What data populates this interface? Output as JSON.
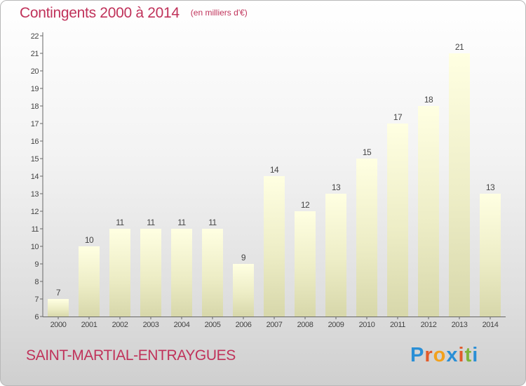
{
  "title": "Contingents 2000 à 2014",
  "subtitle": "(en milliers d'€)",
  "commune": "SAINT-MARTIAL-ENTRAYGUES",
  "logo": {
    "letters": [
      "P",
      "r",
      "o",
      "x",
      "i",
      "t",
      "i"
    ],
    "colors": [
      "#2a8fd6",
      "#e25a2a",
      "#f2a11c",
      "#2a8fd6",
      "#e25a2a",
      "#7fb43a",
      "#2a8fd6"
    ]
  },
  "chart_data": {
    "type": "bar",
    "categories": [
      "2000",
      "2001",
      "2002",
      "2003",
      "2004",
      "2005",
      "2006",
      "2007",
      "2008",
      "2009",
      "2010",
      "2011",
      "2012",
      "2013",
      "2014"
    ],
    "values": [
      7,
      10,
      11,
      11,
      11,
      11,
      9,
      14,
      12,
      13,
      15,
      17,
      18,
      21,
      13
    ],
    "ylim": [
      6,
      22
    ],
    "yticks": [
      6,
      7,
      8,
      9,
      10,
      11,
      12,
      13,
      14,
      15,
      16,
      17,
      18,
      19,
      20,
      21,
      22
    ],
    "grid": false,
    "data_labels": true
  }
}
